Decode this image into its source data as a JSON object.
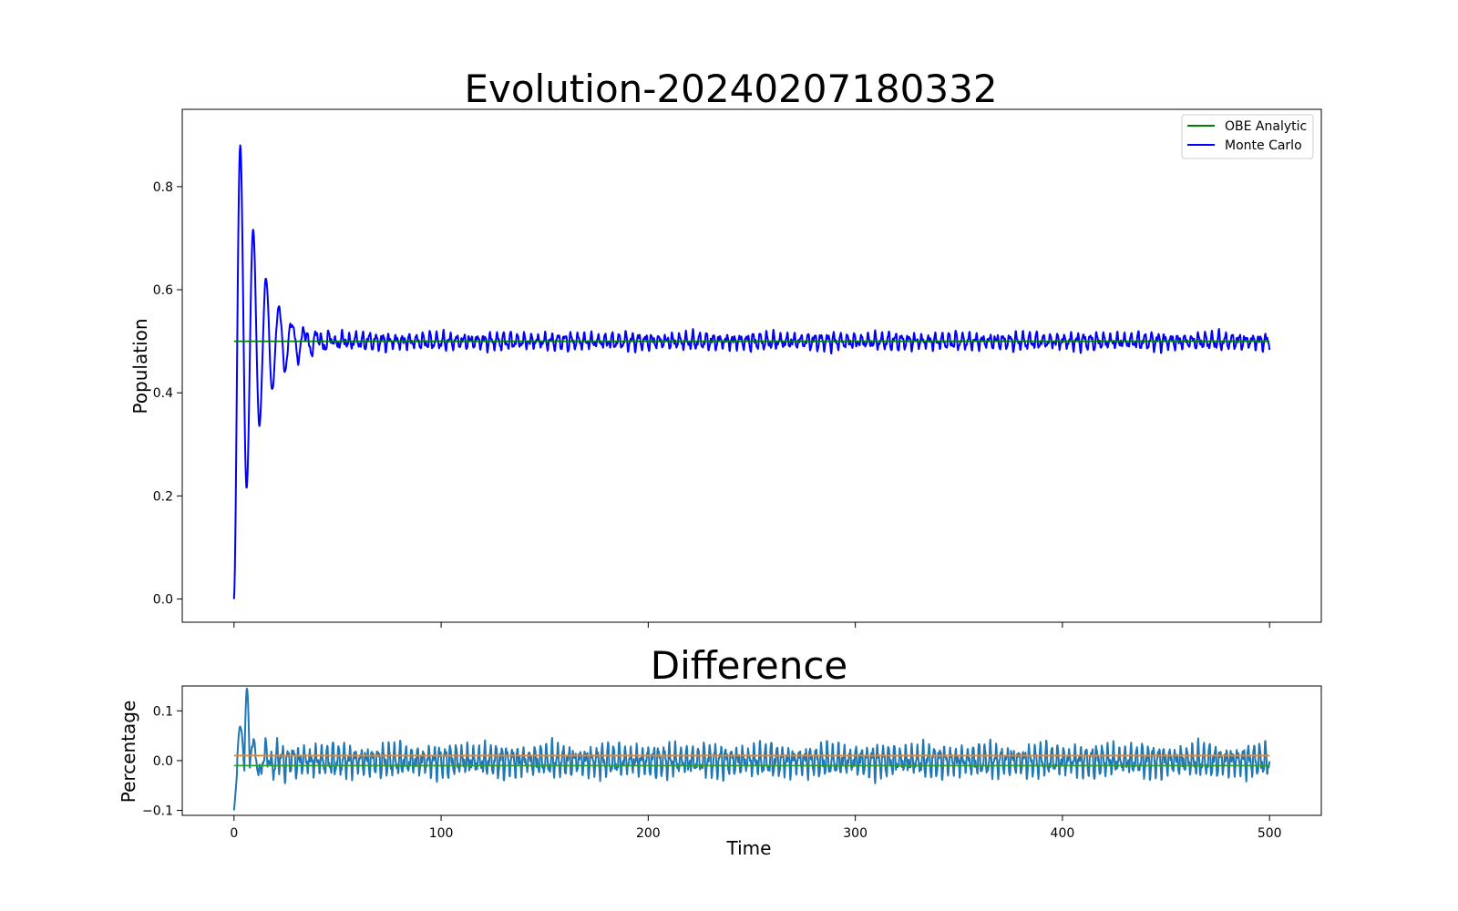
{
  "chart_data": [
    {
      "type": "line",
      "title": "Evolution-20240207180332",
      "xlabel": "",
      "ylabel": "Population",
      "xlim": [
        -25,
        525
      ],
      "ylim": [
        -0.045,
        0.95
      ],
      "xticks": [
        0,
        100,
        200,
        300,
        400,
        500
      ],
      "yticks": [
        0.0,
        0.2,
        0.4,
        0.6,
        0.8
      ],
      "ytick_labels": [
        "0.0",
        "0.2",
        "0.4",
        "0.6",
        "0.8"
      ],
      "legend": "top-right",
      "grid": false,
      "series": [
        {
          "name": "OBE Analytic",
          "color": "#008000",
          "model": "constant",
          "x_start": 0,
          "x_end": 500,
          "value": 0.5
        },
        {
          "name": "Monte Carlo",
          "color": "#0000ff",
          "model": "damped_oscillation_with_noise",
          "x_start": 0,
          "x_end": 500,
          "start_value": 0.0,
          "steady_value": 0.5,
          "key_points": [
            {
              "x": 0,
              "y": 0.0
            },
            {
              "x": 3,
              "y": 0.905
            },
            {
              "x": 6,
              "y": 0.165
            },
            {
              "x": 9,
              "y": 0.765
            },
            {
              "x": 12,
              "y": 0.295
            },
            {
              "x": 15,
              "y": 0.66
            },
            {
              "x": 18,
              "y": 0.365
            },
            {
              "x": 21,
              "y": 0.61
            },
            {
              "x": 24,
              "y": 0.41
            },
            {
              "x": 28,
              "y": 0.56
            },
            {
              "x": 31,
              "y": 0.445
            },
            {
              "x": 35,
              "y": 0.535
            },
            {
              "x": 38,
              "y": 0.455
            },
            {
              "x": 42,
              "y": 0.525
            },
            {
              "x": 46,
              "y": 0.475
            },
            {
              "x": 500,
              "y": 0.48
            }
          ],
          "noise_amplitude": 0.02
        }
      ]
    },
    {
      "type": "line",
      "title": "Difference",
      "xlabel": "Time",
      "ylabel": "Percentage",
      "xlim": [
        -25,
        525
      ],
      "ylim": [
        -0.11,
        0.15
      ],
      "xticks": [
        0,
        100,
        200,
        300,
        400,
        500
      ],
      "xtick_labels": [
        "0",
        "100",
        "200",
        "300",
        "400",
        "500"
      ],
      "yticks": [
        -0.1,
        0.0,
        0.1
      ],
      "ytick_labels": [
        "−0.1",
        "0.0",
        "0.1"
      ],
      "legend": "none",
      "grid": false,
      "series": [
        {
          "color": "#1f77b4",
          "model": "difference_noise",
          "x_start": 0,
          "x_end": 500,
          "key_points": [
            {
              "x": 0,
              "y": -0.1
            },
            {
              "x": 6,
              "y": 0.145
            },
            {
              "x": 9,
              "y": -0.045
            },
            {
              "x": 500,
              "y": 0.04
            }
          ],
          "noise_amplitude": 0.04
        },
        {
          "color": "#ff7f0e",
          "model": "constant",
          "x_start": 0,
          "x_end": 500,
          "value": 0.01
        },
        {
          "color": "#2ca02c",
          "model": "constant",
          "x_start": 0,
          "x_end": 500,
          "value": -0.01
        }
      ]
    }
  ]
}
